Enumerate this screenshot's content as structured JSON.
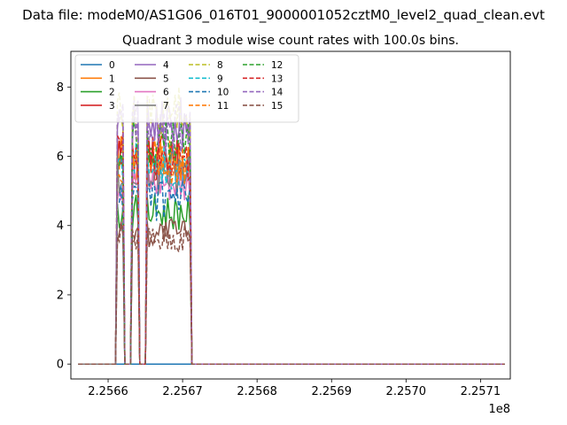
{
  "figure": {
    "suptitle": "Data file: modeM0/AS1G06_016T01_9000001052cztM0_level2_quad_clean.evt"
  },
  "chart_data": {
    "type": "line",
    "title": "Quadrant 3 module wise count rates with 100.0s bins.",
    "xlabel": "",
    "ylabel": "",
    "x_offset_label": "1e8",
    "xlim": [
      2.25655,
      2.25714
    ],
    "ylim": [
      -0.43,
      9.03
    ],
    "x_ticks": [
      2.2566,
      2.2567,
      2.2568,
      2.2569,
      2.257,
      2.2571
    ],
    "x_tick_labels": [
      "2.2566",
      "2.2567",
      "2.2568",
      "2.2569",
      "2.2570",
      "2.2571"
    ],
    "y_ticks": [
      0,
      2,
      4,
      6,
      8
    ],
    "y_tick_labels": [
      "0",
      "2",
      "4",
      "6",
      "8"
    ],
    "grid": false,
    "legend": {
      "placement": "upper-left",
      "columns": 4
    },
    "active_intervals": [
      [
        2.25661,
        2.25662
      ],
      [
        2.25663,
        2.25664
      ],
      [
        2.25665,
        2.25666
      ],
      [
        2.25666,
        2.25667
      ],
      [
        2.25667,
        2.25668
      ],
      [
        2.25668,
        2.25669
      ],
      [
        2.25669,
        2.2567
      ],
      [
        2.2567,
        2.25671
      ]
    ],
    "series": [
      {
        "name": "0",
        "color": "#1f77b4",
        "dash": "solid",
        "level": 0.0
      },
      {
        "name": "1",
        "color": "#ff7f0e",
        "dash": "solid",
        "level": 5.9
      },
      {
        "name": "2",
        "color": "#2ca02c",
        "dash": "solid",
        "level": 4.4
      },
      {
        "name": "3",
        "color": "#d62728",
        "dash": "solid",
        "level": 5.9
      },
      {
        "name": "4",
        "color": "#9467bd",
        "dash": "solid",
        "level": 7.0
      },
      {
        "name": "5",
        "color": "#8c564b",
        "dash": "solid",
        "level": 3.8
      },
      {
        "name": "6",
        "color": "#e377c2",
        "dash": "solid",
        "level": 5.3
      },
      {
        "name": "7",
        "color": "#7f7f7f",
        "dash": "solid",
        "level": 5.5
      },
      {
        "name": "8",
        "color": "#bcbd22",
        "dash": "dashed",
        "level": 7.2
      },
      {
        "name": "9",
        "color": "#17becf",
        "dash": "dashed",
        "level": 5.7
      },
      {
        "name": "10",
        "color": "#1f77b4",
        "dash": "dashed",
        "level": 4.7
      },
      {
        "name": "11",
        "color": "#ff7f0e",
        "dash": "dashed",
        "level": 5.8
      },
      {
        "name": "12",
        "color": "#2ca02c",
        "dash": "dashed",
        "level": 6.4
      },
      {
        "name": "13",
        "color": "#d62728",
        "dash": "dashed",
        "level": 6.0
      },
      {
        "name": "14",
        "color": "#9467bd",
        "dash": "dashed",
        "level": 6.8
      },
      {
        "name": "15",
        "color": "#8c564b",
        "dash": "dashed",
        "level": 3.6
      }
    ]
  }
}
